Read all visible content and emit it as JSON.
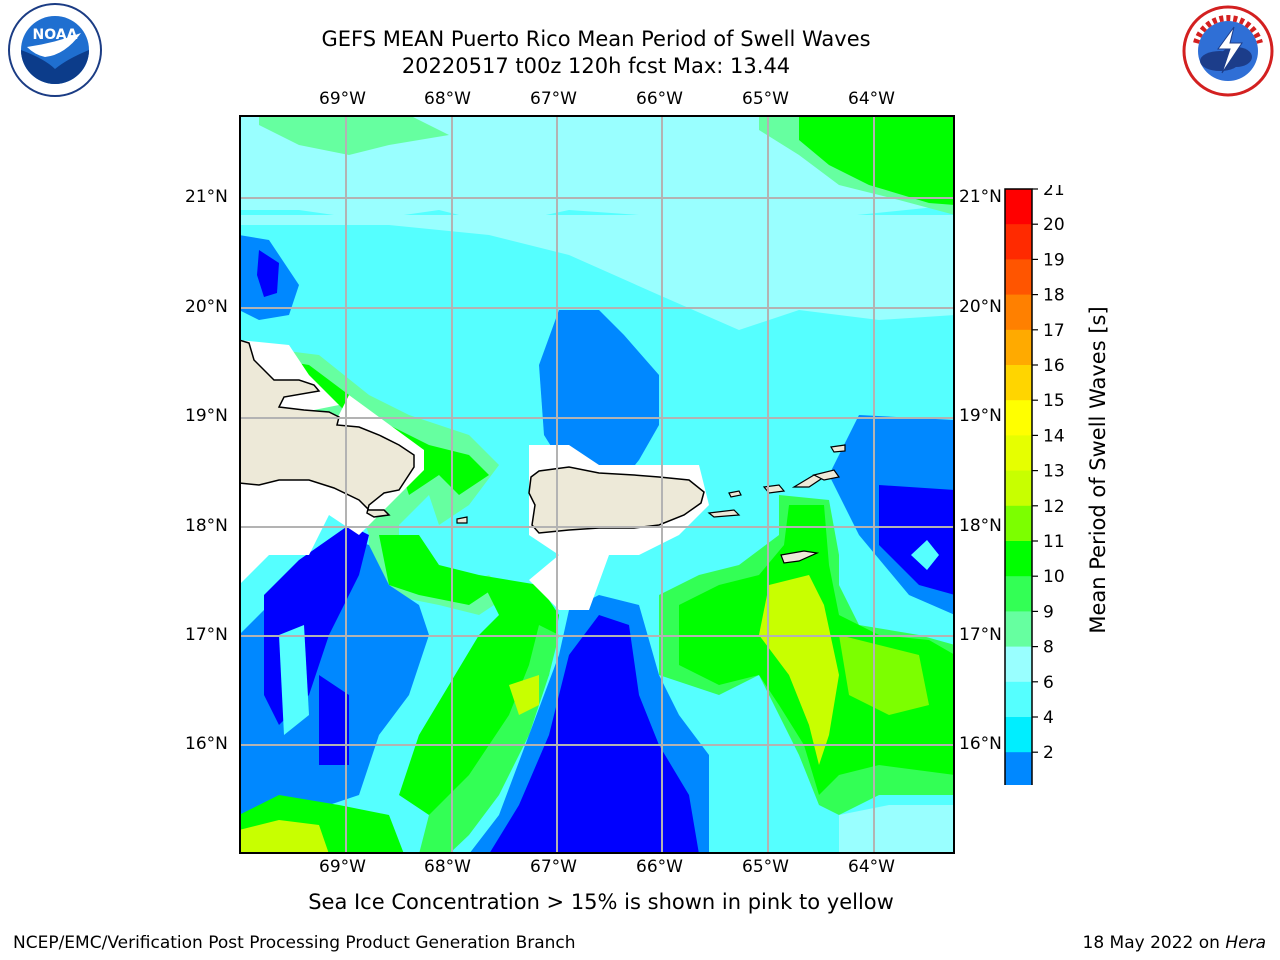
{
  "title_line1": "GEFS MEAN Puerto Rico Mean Period of Swell Waves",
  "title_line2": "20220517 t00z 120h fcst   Max: 13.44",
  "lon_labels": [
    "69°W",
    "68°W",
    "67°W",
    "66°W",
    "65°W",
    "64°W"
  ],
  "lat_labels": [
    "21°N",
    "20°N",
    "19°N",
    "18°N",
    "17°N",
    "16°N"
  ],
  "colorbar": {
    "label": "Mean Period of Swell Waves [s]",
    "ticks": [
      "21",
      "20",
      "19",
      "18",
      "17",
      "16",
      "15",
      "14",
      "13",
      "12",
      "11",
      "10",
      "9",
      "8",
      "6",
      "4",
      "2"
    ],
    "colors": [
      "#ff0000",
      "#ff2a00",
      "#ff5500",
      "#ff8000",
      "#ffaa00",
      "#ffd500",
      "#ffff00",
      "#e6ff00",
      "#c8ff00",
      "#7cff00",
      "#00ff00",
      "#33ff55",
      "#66ffa0",
      "#99ffff",
      "#55ffff",
      "#00eeff",
      "#0088ff",
      "#0000ff"
    ]
  },
  "map": {
    "land_color": "#ede9d8",
    "grid_color": "#b3b3b3",
    "mask_color": "#ffffff"
  },
  "note": "Sea Ice Concentration > 15% is shown in pink to yellow",
  "credit_left": "NCEP/EMC/Verification Post Processing Product Generation Branch",
  "credit_right_prefix": "18 May 2022 on",
  "credit_right_host": "Hera",
  "logos": {
    "noaa_text": "NOAA",
    "nws": "NATIONAL WEATHER SERVICE"
  }
}
